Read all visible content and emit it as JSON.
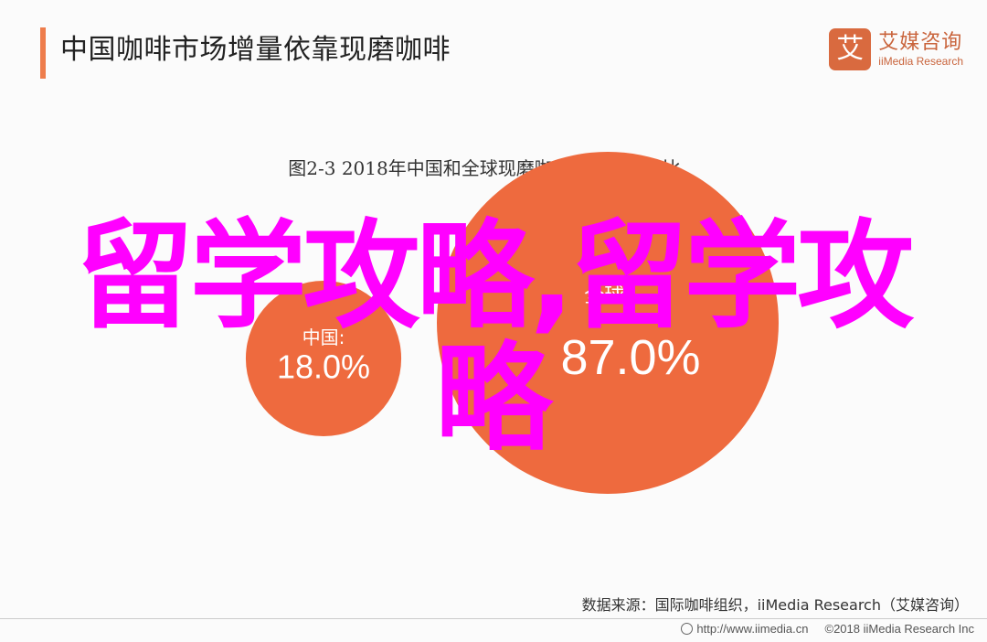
{
  "header": {
    "title": "中国咖啡市场增量依靠现磨咖啡",
    "brand_logo_char": "艾",
    "brand_cn": "艾媒咨询",
    "brand_en": "iiMedia Research",
    "accent_color": "#ee7d4c"
  },
  "overlay": {
    "line1": "留学攻略,留学攻",
    "line2": "略",
    "color": "#ff00ff"
  },
  "chart_data": {
    "type": "bubble",
    "title": "图2-3 2018年中国和全球现磨咖啡市场份额占比",
    "series": [
      {
        "name": "中国:",
        "value_label": "18.0%",
        "value": 18.0,
        "color": "#ee6a3e"
      },
      {
        "name": "全球:",
        "value_label": "87.0%",
        "value": 87.0,
        "color": "#ee6a3e"
      }
    ]
  },
  "footer": {
    "source": "数据来源：国际咖啡组织，iiMedia Research（艾媒咨询）",
    "url": "http://www.iimedia.cn",
    "copyright": "©2018  iiMedia Research  Inc"
  }
}
